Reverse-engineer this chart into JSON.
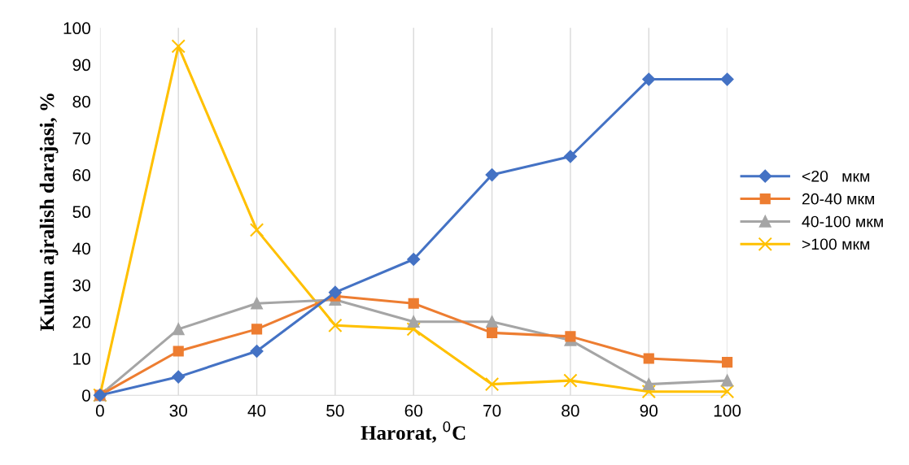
{
  "chart_data": {
    "type": "line",
    "xlabel": "Harorat, $^{0}$C",
    "ylabel": "Kukun ajralish darajasi, %",
    "categories": [
      "0",
      "30",
      "40",
      "50",
      "60",
      "70",
      "80",
      "90",
      "100"
    ],
    "ylim": [
      0,
      100
    ],
    "yticks": [
      0,
      10,
      20,
      30,
      40,
      50,
      60,
      70,
      80,
      90,
      100
    ],
    "grid": "x",
    "legend": "right",
    "series": [
      {
        "name": "<20   мкм",
        "color": "#4472c4",
        "marker": "diamond",
        "values": [
          0,
          5,
          12,
          28,
          37,
          60,
          65,
          86,
          86
        ]
      },
      {
        "name": "20-40 мкм",
        "color": "#ed7d31",
        "marker": "square",
        "values": [
          0,
          12,
          18,
          27,
          25,
          17,
          16,
          10,
          9
        ]
      },
      {
        "name": "40-100 мкм",
        "color": "#a5a5a5",
        "marker": "triangle",
        "values": [
          0,
          18,
          25,
          26,
          20,
          20,
          15,
          3,
          4
        ]
      },
      {
        "name": ">100 мкм",
        "color": "#ffc000",
        "marker": "cross",
        "values": [
          0,
          95,
          45,
          19,
          18,
          3,
          4,
          1,
          1
        ]
      }
    ]
  }
}
